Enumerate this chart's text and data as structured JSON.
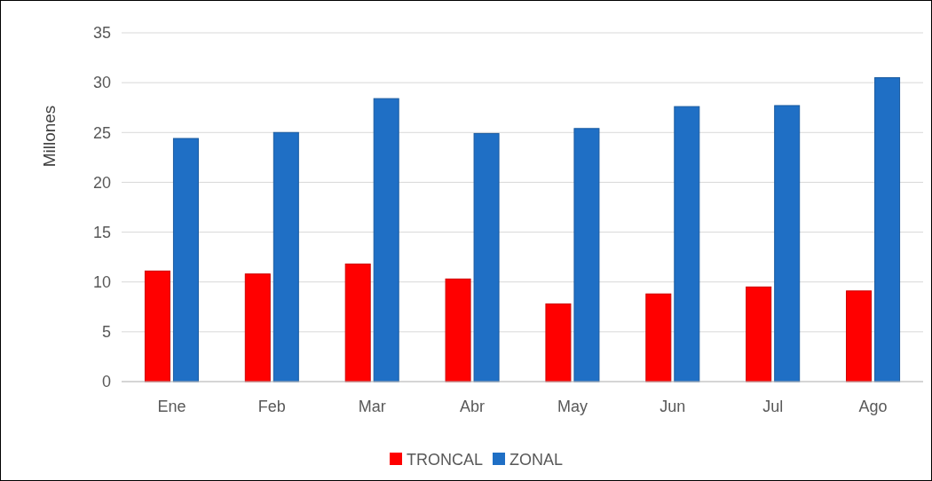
{
  "chart_data": {
    "type": "bar",
    "ylabel": "Millones",
    "categories": [
      "Ene",
      "Feb",
      "Mar",
      "Abr",
      "May",
      "Jun",
      "Jul",
      "Ago"
    ],
    "series": [
      {
        "name": "TRONCAL",
        "color": "#ff0000",
        "values": [
          11.1,
          10.8,
          11.8,
          10.3,
          7.8,
          8.8,
          9.5,
          9.1
        ]
      },
      {
        "name": "ZONAL",
        "color": "#1f6fc5",
        "values": [
          24.4,
          25.0,
          28.4,
          24.9,
          25.4,
          27.6,
          27.7,
          30.5
        ]
      }
    ],
    "ylim": [
      0,
      35
    ],
    "yticks": [
      0,
      5,
      10,
      15,
      20,
      25,
      30,
      35
    ],
    "grid": "y",
    "legend": "bottom"
  }
}
